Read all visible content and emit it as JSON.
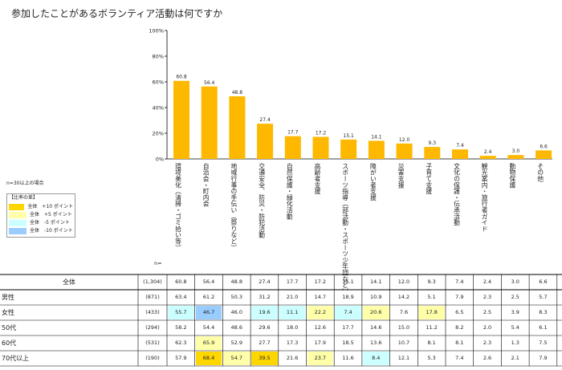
{
  "title": "参加したことがあるボランティア活動は何ですか",
  "colors": {
    "bar": "#FFB800",
    "high10": "#FFD700",
    "high5": "#FFFFAA",
    "low5": "#CCFFFF",
    "low10": "#99CCFF"
  },
  "legend": {
    "note": "n=30以上の場合",
    "header": "【比率の差】",
    "items": [
      {
        "label": "全体　+10 ポイント",
        "color": "#FFD700"
      },
      {
        "label": "全体　+5 ポイント",
        "color": "#FFFFAA"
      },
      {
        "label": "全体　-5 ポイント",
        "color": "#CCFFFF"
      },
      {
        "label": "全体　-10 ポイント",
        "color": "#99CCFF"
      }
    ]
  },
  "n_label": "n=",
  "chart_data": {
    "type": "bar",
    "title": "参加したことがあるボランティア活動は何ですか",
    "categories": [
      "環境美化（清掃・ゴミ拾い等）",
      "自治会・町内会",
      "地域行事の手伝い（祭りなど）",
      "交通安全、防災・防犯活動",
      "自然保護・緑化活動",
      "高齢者支援",
      "スポーツ指導（部活動・スポーツ少年団など）",
      "障がい者支援",
      "災害支援",
      "子育て支援",
      "文化の保護・伝承活動",
      "観光案内・旅行者ガイド",
      "動物保護",
      "その他"
    ],
    "values": [
      60.8,
      56.4,
      48.8,
      27.4,
      17.7,
      17.2,
      15.1,
      14.1,
      12.0,
      9.3,
      7.4,
      2.4,
      3.0,
      6.6
    ],
    "value_labels": [
      "60.8",
      "56.4",
      "48.8",
      "27.4",
      "17.7",
      "17.2",
      "15.1",
      "14.1",
      "12.0",
      "9.3",
      "7.4",
      "2.4",
      "3.0",
      "6.6"
    ],
    "ylim": [
      0,
      100
    ],
    "yticks": [
      "0%",
      "20%",
      "40%",
      "60%",
      "80%",
      "100%"
    ],
    "grid": false,
    "table": {
      "rows": [
        {
          "label": "全体",
          "n": "(1,304)",
          "values": [
            "60.8",
            "56.4",
            "48.8",
            "27.4",
            "17.7",
            "17.2",
            "15.1",
            "14.1",
            "12.0",
            "9.3",
            "7.4",
            "2.4",
            "3.0",
            "6.6"
          ],
          "hl": [
            "",
            "",
            "",
            "",
            "",
            "",
            "",
            "",
            "",
            "",
            "",
            "",
            "",
            ""
          ]
        },
        {
          "label": "男性",
          "n": "(871)",
          "values": [
            "63.4",
            "61.2",
            "50.3",
            "31.2",
            "21.0",
            "14.7",
            "18.9",
            "10.9",
            "14.2",
            "5.1",
            "7.9",
            "2.3",
            "2.5",
            "5.7"
          ],
          "hl": [
            "",
            "",
            "",
            "",
            "",
            "",
            "",
            "",
            "",
            "",
            "",
            "",
            "",
            ""
          ]
        },
        {
          "label": "女性",
          "n": "(433)",
          "values": [
            "55.7",
            "46.7",
            "46.0",
            "19.6",
            "11.1",
            "22.2",
            "7.4",
            "20.6",
            "7.6",
            "17.8",
            "6.5",
            "2.5",
            "3.9",
            "8.3"
          ],
          "hl": [
            "low5",
            "low10",
            "",
            "low5",
            "low5",
            "high5",
            "low5",
            "high5",
            "",
            "high5",
            "",
            "",
            "",
            ""
          ]
        },
        {
          "label": "50代",
          "n": "(294)",
          "values": [
            "58.2",
            "54.4",
            "48.6",
            "29.6",
            "18.0",
            "12.6",
            "17.7",
            "14.6",
            "15.0",
            "11.2",
            "8.2",
            "2.0",
            "5.4",
            "6.1"
          ],
          "hl": [
            "",
            "",
            "",
            "",
            "",
            "",
            "",
            "",
            "",
            "",
            "",
            "",
            "",
            ""
          ]
        },
        {
          "label": "60代",
          "n": "(531)",
          "values": [
            "62.3",
            "65.9",
            "52.9",
            "27.7",
            "17.3",
            "17.9",
            "18.5",
            "13.6",
            "10.7",
            "8.1",
            "8.1",
            "2.3",
            "1.3",
            "7.5"
          ],
          "hl": [
            "",
            "high5",
            "",
            "",
            "",
            "",
            "",
            "",
            "",
            "",
            "",
            "",
            "",
            ""
          ]
        },
        {
          "label": "70代以上",
          "n": "(190)",
          "values": [
            "57.9",
            "68.4",
            "54.7",
            "39.5",
            "21.6",
            "23.7",
            "11.6",
            "8.4",
            "12.1",
            "5.3",
            "7.4",
            "2.6",
            "2.1",
            "7.9"
          ],
          "hl": [
            "",
            "high10",
            "high5",
            "high10",
            "",
            "high5",
            "",
            "low5",
            "",
            "",
            "",
            "",
            "",
            ""
          ]
        }
      ]
    }
  }
}
